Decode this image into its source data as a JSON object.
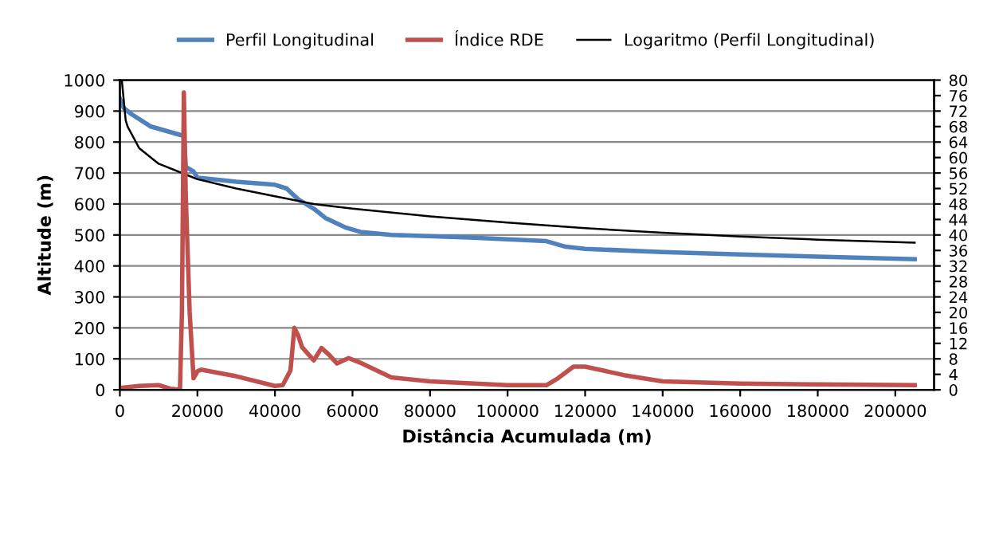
{
  "chart_data": {
    "type": "line",
    "xlabel": "Distância Acumulada (m)",
    "ylabel": "Altitude (m)",
    "xlim": [
      0,
      210000
    ],
    "xticks": [
      0,
      20000,
      40000,
      60000,
      80000,
      100000,
      120000,
      140000,
      160000,
      180000,
      200000
    ],
    "ylim": [
      0,
      1000
    ],
    "yticks": [
      0,
      100,
      200,
      300,
      400,
      500,
      600,
      700,
      800,
      900,
      1000
    ],
    "y2lim": [
      0,
      80
    ],
    "y2ticks": [
      0,
      4,
      8,
      12,
      16,
      20,
      24,
      28,
      32,
      36,
      40,
      44,
      48,
      52,
      56,
      60,
      64,
      68,
      72,
      76,
      80
    ],
    "grid": "y",
    "legend": "top",
    "marker": "none",
    "series": [
      {
        "name": "Perfil Longitudinal",
        "color": "#4f81bd",
        "x": [
          0,
          1000,
          3000,
          8000,
          15000,
          16500,
          17000,
          19000,
          20000,
          30000,
          40000,
          43000,
          46000,
          50000,
          53000,
          58000,
          62000,
          70000,
          90000,
          110000,
          115000,
          120000,
          140000,
          160000,
          180000,
          205000
        ],
        "values": [
          940,
          910,
          890,
          850,
          825,
          820,
          720,
          705,
          685,
          672,
          662,
          650,
          615,
          585,
          555,
          525,
          510,
          500,
          492,
          480,
          462,
          455,
          445,
          437,
          430,
          422
        ]
      },
      {
        "name": "Índice RDE",
        "color": "#c0504d",
        "axis": "y2",
        "x": [
          0,
          5000,
          10000,
          13000,
          15500,
          16000,
          16500,
          17000,
          18000,
          19000,
          20000,
          21000,
          30000,
          40000,
          42000,
          44000,
          45000,
          46000,
          47000,
          50000,
          52000,
          54000,
          56000,
          59000,
          62000,
          70000,
          80000,
          100000,
          110000,
          113000,
          117000,
          120000,
          130000,
          140000,
          160000,
          180000,
          205000
        ],
        "values": [
          0.5,
          1,
          1.2,
          0.3,
          0,
          20,
          76.8,
          50,
          20,
          3,
          4.8,
          5.2,
          3.5,
          1,
          1.2,
          5,
          16,
          14,
          11,
          7.6,
          10.8,
          9,
          6.8,
          8.2,
          7,
          3.2,
          2.2,
          1.2,
          1.2,
          3,
          6,
          6,
          3.8,
          2.2,
          1.6,
          1.4,
          1.2
        ]
      },
      {
        "name": "Logaritmo (Perfil Longitudinal)",
        "color": "#000000",
        "x": [
          500,
          1500,
          2000,
          5000,
          10000,
          17000,
          20000,
          30000,
          40000,
          50000,
          60000,
          80000,
          100000,
          120000,
          140000,
          160000,
          180000,
          205000
        ],
        "values": [
          1000,
          870,
          850,
          780,
          730,
          695,
          680,
          650,
          625,
          600,
          585,
          560,
          540,
          522,
          507,
          495,
          485,
          475
        ]
      }
    ]
  }
}
